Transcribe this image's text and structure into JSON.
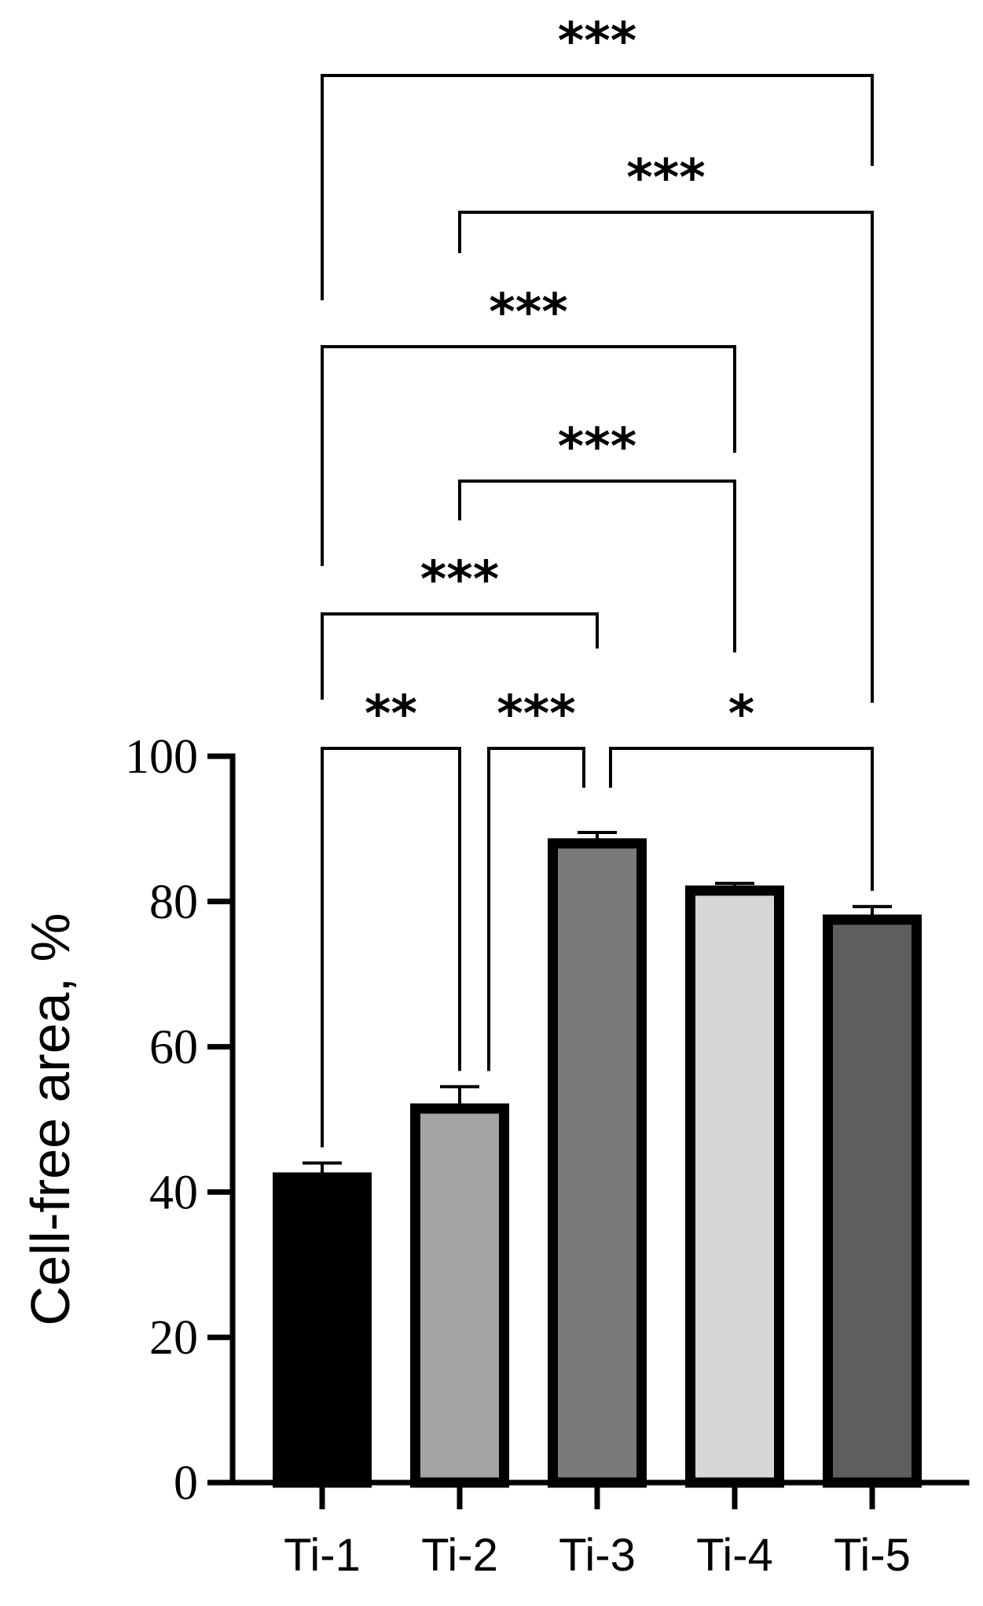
{
  "chart_data": {
    "type": "bar",
    "title": "",
    "xlabel": "",
    "ylabel": "Cell-free area, %",
    "ylim": [
      0,
      100
    ],
    "yticks": [
      "0",
      "20",
      "40",
      "60",
      "80",
      "100"
    ],
    "categories": [
      "Ti-1",
      "Ti-2",
      "Ti-3",
      "Ti-4",
      "Ti-5"
    ],
    "values": [
      42,
      51.5,
      88,
      81.5,
      77.5
    ],
    "errors": [
      2,
      3,
      1.5,
      1,
      1.8
    ],
    "colors": [
      "#000000",
      "#a3a3a6",
      "#7a7a7a",
      "#d6d6d6",
      "#5e5e5e"
    ],
    "grid": false,
    "legend": "none",
    "comparisons": [
      {
        "from": "Ti-1",
        "to": "Ti-2",
        "label": "**"
      },
      {
        "from": "Ti-2",
        "to": "Ti-3",
        "label": "***"
      },
      {
        "from": "Ti-3",
        "to": "Ti-5",
        "label": "*"
      },
      {
        "from": "Ti-1",
        "to": "Ti-3",
        "label": "***"
      },
      {
        "from": "Ti-2",
        "to": "Ti-4",
        "label": "***"
      },
      {
        "from": "Ti-1",
        "to": "Ti-4",
        "label": "***"
      },
      {
        "from": "Ti-2",
        "to": "Ti-5",
        "label": "***"
      },
      {
        "from": "Ti-1",
        "to": "Ti-5",
        "label": "***"
      }
    ]
  }
}
